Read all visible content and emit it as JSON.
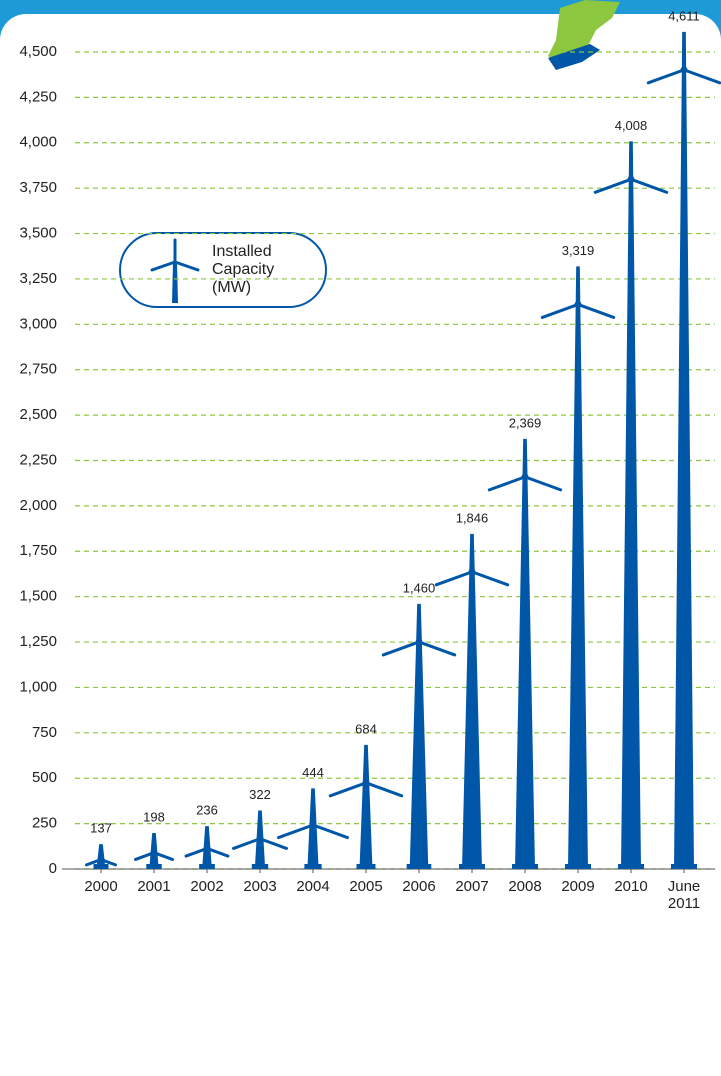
{
  "chart_data": {
    "type": "pictograph-bar",
    "legend_label": "Installed Capacity (MW)",
    "categories": [
      "2000",
      "2001",
      "2002",
      "2003",
      "2004",
      "2005",
      "2006",
      "2007",
      "2008",
      "2009",
      "2010",
      "June 2011"
    ],
    "values": [
      137,
      198,
      236,
      322,
      444,
      684,
      1460,
      1846,
      2369,
      3319,
      4008,
      4611
    ],
    "value_labels": [
      "137",
      "198",
      "236",
      "322",
      "444",
      "684",
      "1,460",
      "1,846",
      "2,369",
      "3,319",
      "4,008",
      "4,611"
    ],
    "color": "#0057a8",
    "grid_color": "#8dc63f",
    "grid": true,
    "ylim": [
      0,
      4500
    ],
    "yticks": [
      0,
      250,
      500,
      750,
      {
        "value": 1000,
        "label": "1,000"
      },
      {
        "value": 1250,
        "label": "1,250"
      },
      {
        "value": 1500,
        "label": "1,500"
      },
      {
        "value": 1750,
        "label": "1,750"
      },
      {
        "value": 2000,
        "label": "2,000"
      },
      {
        "value": 2250,
        "label": "2,250"
      },
      {
        "value": 2500,
        "label": "2,500"
      },
      {
        "value": 2750,
        "label": "2,750"
      },
      {
        "value": 3000,
        "label": "3,000"
      },
      {
        "value": 3250,
        "label": "3,250"
      },
      {
        "value": 3500,
        "label": "3,500"
      },
      {
        "value": 3750,
        "label": "3,750"
      },
      {
        "value": 4000,
        "label": "4,000"
      },
      {
        "value": 4250,
        "label": "4,250"
      },
      {
        "value": 4500,
        "label": "4,500"
      }
    ]
  }
}
